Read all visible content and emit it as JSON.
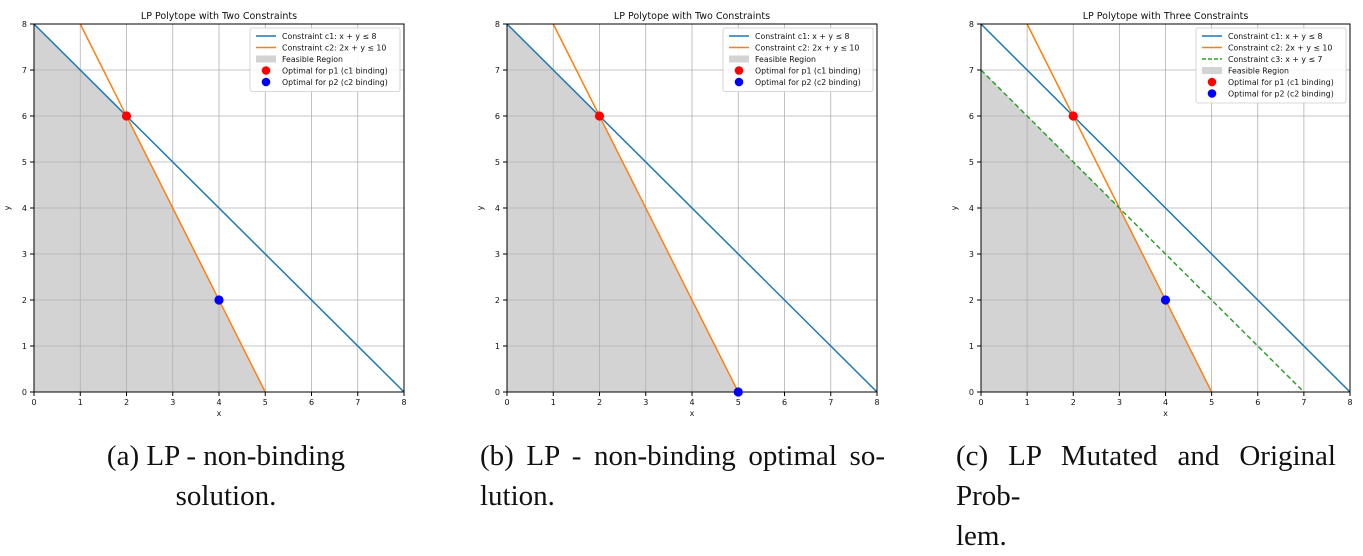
{
  "chart_data": [
    {
      "type": "line",
      "title": "LP Polytope with Two Constraints",
      "xlabel": "x",
      "ylabel": "y",
      "xlim": [
        0,
        8
      ],
      "ylim": [
        0,
        8
      ],
      "x_ticks": [
        "0",
        "1",
        "2",
        "3",
        "4",
        "5",
        "6",
        "7",
        "8"
      ],
      "y_ticks": [
        "0",
        "1",
        "2",
        "3",
        "4",
        "5",
        "6",
        "7",
        "8"
      ],
      "grid": true,
      "legend_placement": "top-right",
      "series": [
        {
          "name": "Constraint c1: x + y ≤ 8",
          "kind": "line",
          "color": "#1f77b4",
          "dash": false,
          "points": [
            [
              0,
              8
            ],
            [
              8,
              0
            ]
          ]
        },
        {
          "name": "Constraint c2: 2x + y ≤ 10",
          "kind": "line",
          "color": "#ff7f0e",
          "dash": false,
          "points": [
            [
              1,
              8
            ],
            [
              5,
              0
            ]
          ]
        }
      ],
      "feasible_region": {
        "name": "Feasible Region",
        "color": "#d3d3d3",
        "polygon": [
          [
            0,
            0
          ],
          [
            0,
            8
          ],
          [
            2,
            6
          ],
          [
            5,
            0
          ]
        ]
      },
      "markers": [
        {
          "name": "Optimal for p1 (c1 binding)",
          "color": "#ff0000",
          "x": 2,
          "y": 6
        },
        {
          "name": "Optimal for p2 (c2 binding)",
          "color": "#0000ff",
          "x": 4,
          "y": 2
        }
      ],
      "caption": [
        "(a) LP - non-binding",
        "solution."
      ]
    },
    {
      "type": "line",
      "title": "LP Polytope with Two Constraints",
      "xlabel": "x",
      "ylabel": "y",
      "xlim": [
        0,
        8
      ],
      "ylim": [
        0,
        8
      ],
      "x_ticks": [
        "0",
        "1",
        "2",
        "3",
        "4",
        "5",
        "6",
        "7",
        "8"
      ],
      "y_ticks": [
        "0",
        "1",
        "2",
        "3",
        "4",
        "5",
        "6",
        "7",
        "8"
      ],
      "grid": true,
      "legend_placement": "top-right",
      "series": [
        {
          "name": "Constraint c1: x + y ≤ 8",
          "kind": "line",
          "color": "#1f77b4",
          "dash": false,
          "points": [
            [
              0,
              8
            ],
            [
              8,
              0
            ]
          ]
        },
        {
          "name": "Constraint c2: 2x + y ≤ 10",
          "kind": "line",
          "color": "#ff7f0e",
          "dash": false,
          "points": [
            [
              1,
              8
            ],
            [
              5,
              0
            ]
          ]
        }
      ],
      "feasible_region": {
        "name": "Feasible Region",
        "color": "#d3d3d3",
        "polygon": [
          [
            0,
            0
          ],
          [
            0,
            8
          ],
          [
            2,
            6
          ],
          [
            5,
            0
          ]
        ]
      },
      "markers": [
        {
          "name": "Optimal for p1 (c1 binding)",
          "color": "#ff0000",
          "x": 2,
          "y": 6
        },
        {
          "name": "Optimal for p2 (c2 binding)",
          "color": "#0000ff",
          "x": 5,
          "y": 0
        }
      ],
      "caption": [
        "(b) LP - non-binding optimal so-",
        "lution."
      ]
    },
    {
      "type": "line",
      "title": "LP Polytope with Three Constraints",
      "xlabel": "x",
      "ylabel": "y",
      "xlim": [
        0,
        8
      ],
      "ylim": [
        0,
        8
      ],
      "x_ticks": [
        "0",
        "1",
        "2",
        "3",
        "4",
        "5",
        "6",
        "7",
        "8"
      ],
      "y_ticks": [
        "0",
        "1",
        "2",
        "3",
        "4",
        "5",
        "6",
        "7",
        "8"
      ],
      "grid": true,
      "legend_placement": "top-right",
      "series": [
        {
          "name": "Constraint c1: x + y ≤ 8",
          "kind": "line",
          "color": "#1f77b4",
          "dash": false,
          "points": [
            [
              0,
              8
            ],
            [
              8,
              0
            ]
          ]
        },
        {
          "name": "Constraint c2: 2x + y ≤ 10",
          "kind": "line",
          "color": "#ff7f0e",
          "dash": false,
          "points": [
            [
              1,
              8
            ],
            [
              5,
              0
            ]
          ]
        },
        {
          "name": "Constraint c3: x + y ≤ 7",
          "kind": "line",
          "color": "#2ca02c",
          "dash": true,
          "points": [
            [
              0,
              7
            ],
            [
              7,
              0
            ]
          ]
        }
      ],
      "feasible_region": {
        "name": "Feasible Region",
        "color": "#d3d3d3",
        "polygon": [
          [
            0,
            0
          ],
          [
            0,
            7
          ],
          [
            3,
            4
          ],
          [
            5,
            0
          ]
        ]
      },
      "markers": [
        {
          "name": "Optimal for p1 (c1 binding)",
          "color": "#ff0000",
          "x": 2,
          "y": 6
        },
        {
          "name": "Optimal for p2 (c2 binding)",
          "color": "#0000ff",
          "x": 4,
          "y": 2
        }
      ],
      "caption": [
        "(c) LP Mutated and Original Prob-",
        "lem."
      ]
    }
  ]
}
